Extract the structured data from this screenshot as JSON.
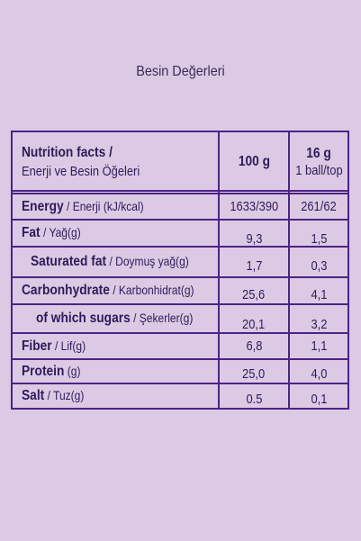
{
  "page_title": "Besin Değerleri",
  "header": {
    "label_line1": "Nutrition facts /",
    "label_line2": "Enerji ve Besin Öğeleri",
    "col1": "100 g",
    "col2_line1": "16 g",
    "col2_line2": "1 ball/top"
  },
  "rows": [
    {
      "name_en": "Energy",
      "name_tr": " / Enerji (kJ/kcal)",
      "v100": "1633/390",
      "vportion": "261/62"
    },
    {
      "name_en": "Fat",
      "name_tr": " / Yağ(g)",
      "v100": "9,3",
      "vportion": "1,5"
    },
    {
      "name_en": "Saturated fat",
      "name_tr": " / Doymuş yağ(g)",
      "v100": "1,7",
      "vportion": "0,3"
    },
    {
      "name_en": "Carbonhydrate",
      "name_tr": " / Karbonhidrat(g)",
      "v100": "25,6",
      "vportion": "4,1"
    },
    {
      "name_en": "of which sugars",
      "name_tr": " / Şekerler(g)",
      "v100": "20,1",
      "vportion": "3,2"
    },
    {
      "name_en": "Fiber",
      "name_tr": " / Lif(g)",
      "v100": "6,8",
      "vportion": "1,1"
    },
    {
      "name_en": "Protein",
      "name_tr": " (g)",
      "v100": "25,0",
      "vportion": "4,0"
    },
    {
      "name_en": "Salt",
      "name_tr": " / Tuz(g)",
      "v100": "0.5",
      "vportion": "0,1"
    }
  ],
  "colors": {
    "background": "#dccae4",
    "border": "#4a2486",
    "text": "#2e1b5a"
  }
}
